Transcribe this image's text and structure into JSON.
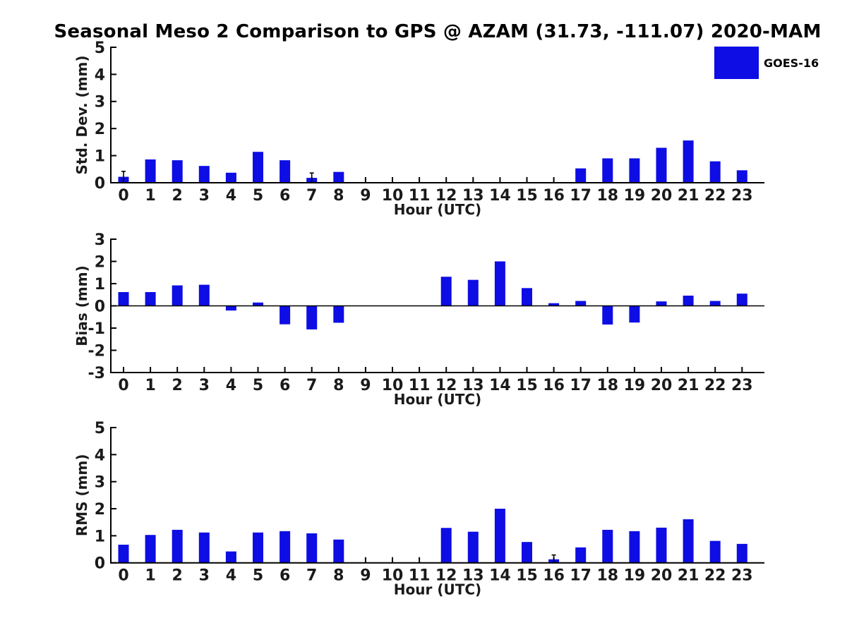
{
  "title": "Seasonal Meso 2 Comparison to GPS @ AZAM (31.73, -111.07) 2020-MAM",
  "legend": {
    "label": "GOES-16",
    "color": "#0d0de4"
  },
  "chart_data": [
    {
      "type": "bar",
      "id": "stddev",
      "series_name": "GOES-16",
      "ylabel": "Std. Dev. (mm)",
      "xlabel": "Hour (UTC)",
      "ylim": [
        0,
        5
      ],
      "yticks": [
        0,
        1,
        2,
        3,
        4,
        5
      ],
      "grid": false,
      "legend_position": "upper right",
      "bar_color": "#0d0de4",
      "categories": [
        0,
        1,
        2,
        3,
        4,
        5,
        6,
        7,
        8,
        9,
        10,
        11,
        12,
        13,
        14,
        15,
        16,
        17,
        18,
        19,
        20,
        21,
        22,
        23
      ],
      "values": [
        0.22,
        0.86,
        0.83,
        0.62,
        0.37,
        1.14,
        0.83,
        0.18,
        0.4,
        0,
        0,
        0,
        0,
        0,
        0,
        0,
        0,
        0.53,
        0.9,
        0.9,
        1.29,
        1.56,
        0.79,
        0.46
      ],
      "yerr": [
        0.2,
        0,
        0,
        0,
        0,
        0,
        0,
        0.18,
        0,
        0,
        0,
        0,
        0,
        0,
        0,
        0,
        0,
        0,
        0,
        0,
        0,
        0,
        0,
        0
      ]
    },
    {
      "type": "bar",
      "id": "bias",
      "series_name": "GOES-16",
      "ylabel": "Bias (mm)",
      "xlabel": "Hour (UTC)",
      "ylim": [
        -3,
        3
      ],
      "yticks": [
        -3,
        -2,
        -1,
        0,
        1,
        2,
        3
      ],
      "grid": false,
      "zero_line": true,
      "bar_color": "#0d0de4",
      "categories": [
        0,
        1,
        2,
        3,
        4,
        5,
        6,
        7,
        8,
        9,
        10,
        11,
        12,
        13,
        14,
        15,
        16,
        17,
        18,
        19,
        20,
        21,
        22,
        23
      ],
      "values": [
        0.62,
        0.62,
        0.92,
        0.95,
        -0.21,
        0.15,
        -0.83,
        -1.06,
        -0.76,
        0,
        0,
        0,
        1.31,
        1.17,
        2.0,
        0.8,
        0.12,
        0.22,
        -0.84,
        -0.75,
        0.2,
        0.46,
        0.22,
        0.55
      ],
      "yerr": [
        0,
        0,
        0,
        0,
        0,
        0,
        0,
        0,
        0,
        0,
        0,
        0,
        0,
        0,
        0,
        0,
        0,
        0,
        0,
        0,
        0,
        0,
        0,
        0
      ]
    },
    {
      "type": "bar",
      "id": "rms",
      "series_name": "GOES-16",
      "ylabel": "RMS (mm)",
      "xlabel": "Hour (UTC)",
      "ylim": [
        0,
        5
      ],
      "yticks": [
        0,
        1,
        2,
        3,
        4,
        5
      ],
      "grid": false,
      "bar_color": "#0d0de4",
      "categories": [
        0,
        1,
        2,
        3,
        4,
        5,
        6,
        7,
        8,
        9,
        10,
        11,
        12,
        13,
        14,
        15,
        16,
        17,
        18,
        19,
        20,
        21,
        22,
        23
      ],
      "values": [
        0.67,
        1.03,
        1.22,
        1.12,
        0.42,
        1.12,
        1.17,
        1.09,
        0.86,
        0,
        0,
        0,
        1.29,
        1.15,
        2.0,
        0.77,
        0.13,
        0.57,
        1.22,
        1.17,
        1.3,
        1.61,
        0.81,
        0.7
      ],
      "yerr": [
        0,
        0,
        0,
        0,
        0,
        0,
        0,
        0,
        0,
        0,
        0,
        0,
        0,
        0,
        0,
        0,
        0.16,
        0,
        0,
        0,
        0,
        0,
        0,
        0
      ]
    }
  ]
}
